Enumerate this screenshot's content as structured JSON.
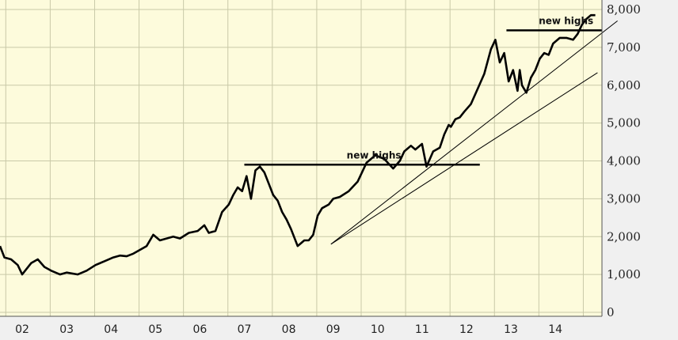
{
  "chart_data": {
    "type": "line",
    "title": "",
    "xlabel": "",
    "ylabel": "",
    "x_tick_labels": [
      "02",
      "03",
      "04",
      "05",
      "06",
      "07",
      "08",
      "09",
      "10",
      "11",
      "12",
      "13",
      "14"
    ],
    "y_tick_labels": [
      "0",
      "1,000",
      "2,000",
      "3,000",
      "4,000",
      "5,000",
      "6,000",
      "7,000",
      "8,000"
    ],
    "ylim": [
      0,
      8000
    ],
    "xlim": [
      2001.85,
      2015.4
    ],
    "grid": true,
    "series": [
      {
        "x": [
          2001.85,
          2001.95,
          2002.1,
          2002.25,
          2002.35,
          2002.55,
          2002.7,
          2002.85,
          2003.0,
          2003.2,
          2003.35,
          2003.6,
          2003.8,
          2004.0,
          2004.2,
          2004.4,
          2004.55,
          2004.7,
          2004.85,
          2005.0,
          2005.15,
          2005.3,
          2005.45,
          2005.6,
          2005.75,
          2005.9,
          2006.1,
          2006.3,
          2006.45,
          2006.55,
          2006.7,
          2006.85,
          2007.0,
          2007.1,
          2007.2,
          2007.3,
          2007.4,
          2007.5,
          2007.6,
          2007.7,
          2007.8,
          2007.9,
          2008.0,
          2008.1,
          2008.2,
          2008.3,
          2008.4,
          2008.55,
          2008.7,
          2008.8,
          2008.9,
          2009.0,
          2009.1,
          2009.25,
          2009.35,
          2009.5,
          2009.7,
          2009.9,
          2010.1,
          2010.3,
          2010.5,
          2010.7,
          2010.85,
          2010.95,
          2011.1,
          2011.2,
          2011.35,
          2011.45,
          2011.6,
          2011.75,
          2011.85,
          2011.95,
          2012.0,
          2012.1,
          2012.2,
          2012.3,
          2012.45,
          2012.6,
          2012.75,
          2012.9,
          2013.0,
          2013.1,
          2013.2,
          2013.3,
          2013.4,
          2013.5,
          2013.55,
          2013.6,
          2013.7,
          2013.8,
          2013.9,
          2014.0,
          2014.1,
          2014.2,
          2014.3,
          2014.45,
          2014.6,
          2014.75,
          2014.85,
          2014.95,
          2015.05,
          2015.15,
          2015.25
        ],
        "y": [
          1750,
          1450,
          1400,
          1250,
          1000,
          1300,
          1400,
          1200,
          1100,
          1000,
          1050,
          1000,
          1100,
          1250,
          1350,
          1450,
          1500,
          1480,
          1550,
          1650,
          1750,
          2050,
          1900,
          1950,
          2000,
          1950,
          2100,
          2150,
          2300,
          2100,
          2150,
          2650,
          2850,
          3100,
          3300,
          3200,
          3600,
          3000,
          3750,
          3850,
          3700,
          3400,
          3100,
          2950,
          2650,
          2450,
          2200,
          1750,
          1900,
          1900,
          2050,
          2550,
          2750,
          2850,
          3000,
          3050,
          3200,
          3450,
          3950,
          4150,
          4050,
          3800,
          4000,
          4250,
          4400,
          4300,
          4450,
          3850,
          4250,
          4350,
          4700,
          4950,
          4900,
          5100,
          5150,
          5300,
          5500,
          5900,
          6300,
          6950,
          7200,
          6600,
          6850,
          6100,
          6400,
          5850,
          6400,
          6000,
          5800,
          6200,
          6400,
          6700,
          6850,
          6800,
          7100,
          7250,
          7250,
          7200,
          7350,
          7600,
          7750,
          7850,
          7850
        ]
      }
    ],
    "annotations": [
      {
        "text": "new highs",
        "type": "horizontal_line",
        "y": 3900,
        "x_start": 2007.35,
        "x_end": 2012.65
      },
      {
        "text": "new highs",
        "type": "horizontal_line",
        "y": 7450,
        "x_start": 2013.25,
        "x_end": 2015.4
      }
    ],
    "trendlines": [
      {
        "x": [
          2009.3,
          2015.75
        ],
        "y": [
          1800,
          7700
        ]
      },
      {
        "x": [
          2009.3,
          2015.3
        ],
        "y": [
          1800,
          6330
        ]
      }
    ]
  }
}
